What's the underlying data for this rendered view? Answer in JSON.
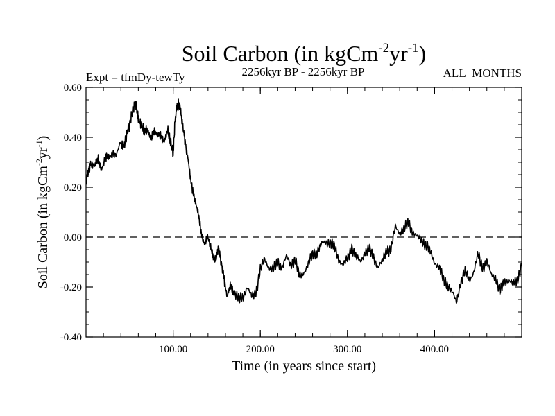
{
  "chart_data": {
    "type": "line",
    "title_main": "Soil Carbon (in kgCm",
    "title_sup1": "-2",
    "title_mid": "yr",
    "title_sup2": "-1",
    "title_end": ")",
    "subtitle_left": "Expt = tfmDy-tewTy",
    "subtitle_center": "2256kyr BP - 2256kyr BP",
    "subtitle_right": "ALL_MONTHS",
    "xlabel": "Time (in years since start)",
    "ylabel_main": "Soil Carbon (in kgCm",
    "ylabel_sup1": "-2",
    "ylabel_mid": "yr",
    "ylabel_sup2": "-1",
    "ylabel_end": ")",
    "xlim": [
      0,
      500
    ],
    "ylim": [
      -0.4,
      0.6
    ],
    "x_ticks": [
      100,
      200,
      300,
      400
    ],
    "x_tick_labels": [
      "100.00",
      "200.00",
      "300.00",
      "400.00"
    ],
    "y_ticks": [
      -0.4,
      -0.2,
      0.0,
      0.2,
      0.4,
      0.6
    ],
    "y_tick_labels": [
      "-0.40",
      "-0.20",
      "0.00",
      "0.20",
      "0.40",
      "0.60"
    ],
    "reference_line": 0.0,
    "series": [
      {
        "name": "Soil Carbon",
        "x": [
          0,
          3,
          6,
          10,
          14,
          18,
          22,
          26,
          30,
          35,
          40,
          44,
          47,
          50,
          53,
          56,
          58,
          60,
          63,
          66,
          70,
          74,
          78,
          82,
          86,
          90,
          94,
          97,
          100,
          102,
          104,
          106,
          108,
          110,
          113,
          116,
          120,
          124,
          128,
          132,
          136,
          140,
          143,
          146,
          149,
          152,
          155,
          158,
          162,
          166,
          170,
          175,
          180,
          185,
          190,
          195,
          200,
          205,
          210,
          215,
          220,
          225,
          230,
          235,
          240,
          245,
          250,
          255,
          260,
          265,
          270,
          275,
          280,
          285,
          290,
          295,
          300,
          305,
          310,
          315,
          320,
          325,
          330,
          335,
          340,
          345,
          350,
          355,
          360,
          365,
          370,
          375,
          380,
          385,
          390,
          395,
          400,
          405,
          410,
          415,
          420,
          425,
          430,
          435,
          440,
          445,
          450,
          455,
          460,
          465,
          470,
          475,
          480,
          485,
          490,
          495,
          500
        ],
        "values": [
          0.22,
          0.27,
          0.3,
          0.28,
          0.31,
          0.28,
          0.31,
          0.32,
          0.34,
          0.33,
          0.38,
          0.37,
          0.42,
          0.45,
          0.5,
          0.53,
          0.52,
          0.47,
          0.45,
          0.43,
          0.42,
          0.4,
          0.43,
          0.4,
          0.41,
          0.39,
          0.42,
          0.38,
          0.33,
          0.46,
          0.52,
          0.53,
          0.52,
          0.47,
          0.4,
          0.33,
          0.23,
          0.17,
          0.1,
          0.02,
          -0.02,
          0.0,
          -0.04,
          -0.08,
          -0.09,
          -0.04,
          -0.1,
          -0.15,
          -0.24,
          -0.2,
          -0.22,
          -0.25,
          -0.24,
          -0.2,
          -0.24,
          -0.22,
          -0.13,
          -0.09,
          -0.12,
          -0.13,
          -0.1,
          -0.12,
          -0.08,
          -0.11,
          -0.09,
          -0.16,
          -0.14,
          -0.11,
          -0.07,
          -0.06,
          -0.03,
          -0.02,
          -0.02,
          -0.04,
          -0.09,
          -0.11,
          -0.09,
          -0.04,
          -0.08,
          -0.1,
          -0.06,
          -0.05,
          -0.08,
          -0.12,
          -0.1,
          -0.05,
          -0.05,
          0.04,
          0.02,
          0.03,
          0.06,
          0.02,
          0.0,
          -0.01,
          -0.03,
          -0.06,
          -0.1,
          -0.12,
          -0.17,
          -0.19,
          -0.22,
          -0.26,
          -0.18,
          -0.14,
          -0.17,
          -0.14,
          -0.07,
          -0.12,
          -0.1,
          -0.15,
          -0.16,
          -0.22,
          -0.18,
          -0.17,
          -0.19,
          -0.17,
          -0.11
        ]
      }
    ]
  }
}
